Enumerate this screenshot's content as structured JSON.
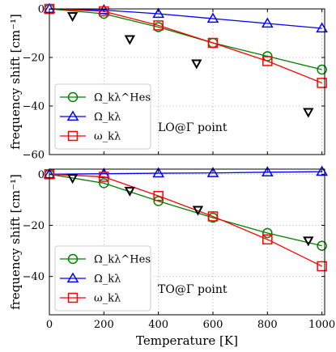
{
  "chart_data": [
    {
      "type": "line",
      "panel": "top",
      "annotation": "LO@Γ point",
      "ylabel": "frequency shift [cm⁻¹]",
      "xlabel": "",
      "xlim": [
        0,
        1010
      ],
      "ylim": [
        -60,
        0
      ],
      "xticks": [
        0,
        200,
        400,
        600,
        800,
        1000
      ],
      "yticks": [
        0,
        -20,
        -40,
        -60
      ],
      "grid": true,
      "legend_placement": "bottom-left",
      "series": [
        {
          "name": "Ω_kλ^Hes",
          "color": "#008000",
          "marker": "circle",
          "x": [
            0,
            200,
            400,
            600,
            800,
            1000
          ],
          "y": [
            0,
            -2,
            -7.5,
            -14,
            -19.5,
            -25
          ]
        },
        {
          "name": "Ω_kλ",
          "color": "#0000ff",
          "marker": "triangle-up",
          "x": [
            0,
            200,
            400,
            600,
            800,
            1000
          ],
          "y": [
            0,
            -0.5,
            -2,
            -4,
            -6,
            -8
          ]
        },
        {
          "name": "ω_kλ",
          "color": "#ff0000",
          "marker": "square",
          "x": [
            0,
            200,
            400,
            600,
            800,
            1000
          ],
          "y": [
            0,
            -1,
            -6.8,
            -14,
            -21.5,
            -30.5
          ]
        }
      ],
      "reference_points": {
        "color": "#000000",
        "marker": "triangle-down",
        "x": [
          85,
          295,
          540,
          950
        ],
        "y": [
          -3,
          -12.5,
          -22.5,
          -42.5
        ]
      }
    },
    {
      "type": "line",
      "panel": "bottom",
      "annotation": "TO@Γ point",
      "ylabel": "frequency shift [cm⁻¹]",
      "xlabel": "Temperature [K]",
      "xlim": [
        0,
        1010
      ],
      "ylim": [
        -55,
        2
      ],
      "xticks": [
        0,
        200,
        400,
        600,
        800,
        1000
      ],
      "yticks": [
        0,
        -20,
        -40
      ],
      "grid": true,
      "legend_placement": "bottom-left",
      "series": [
        {
          "name": "Ω_kλ^Hes",
          "color": "#008000",
          "marker": "circle",
          "x": [
            0,
            200,
            400,
            600,
            800,
            1000
          ],
          "y": [
            0,
            -3.5,
            -10.5,
            -17,
            -23,
            -28
          ]
        },
        {
          "name": "Ω_kλ",
          "color": "#0000ff",
          "marker": "triangle-up",
          "x": [
            0,
            200,
            400,
            600,
            800,
            1000
          ],
          "y": [
            0,
            0.2,
            0.4,
            0.5,
            0.8,
            1
          ]
        },
        {
          "name": "ω_kλ",
          "color": "#ff0000",
          "marker": "square",
          "x": [
            0,
            200,
            400,
            600,
            800,
            1000
          ],
          "y": [
            0,
            -1,
            -8.5,
            -16.5,
            -25.5,
            -36
          ]
        }
      ],
      "reference_points": {
        "color": "#000000",
        "marker": "triangle-down",
        "x": [
          85,
          295,
          545,
          950
        ],
        "y": [
          -1.5,
          -6.5,
          -14,
          -26
        ]
      }
    }
  ]
}
